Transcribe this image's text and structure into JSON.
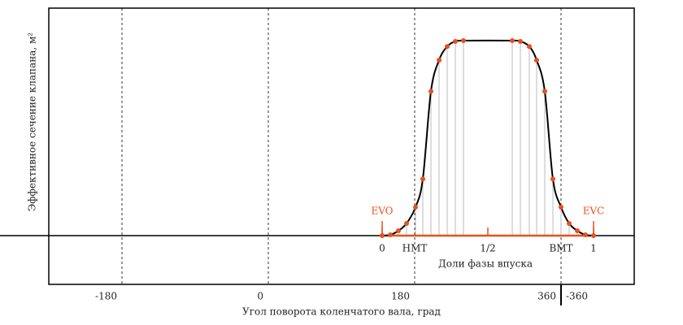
{
  "chart_data": {
    "type": "line",
    "xlabel": "Угол поворота коленчатого вала, град",
    "ylabel": "Эффективное сечение клапана, м²",
    "xlim": [
      -270,
      450
    ],
    "ylim": [
      -0.25,
      1.1667
    ],
    "xticks": [
      -180,
      0,
      180,
      360
    ],
    "xtick_extra": {
      "value": 360,
      "label": "-360"
    },
    "grid": true,
    "x": [
      140,
      150,
      160,
      170,
      181,
      190,
      200,
      210,
      220,
      230,
      240,
      300,
      310,
      321,
      330,
      340,
      350,
      360,
      370,
      380,
      390,
      400
    ],
    "series": [
      {
        "color": "#000000",
        "marker_color": "#e8501e",
        "values": [
          0,
          0.004,
          0.025,
          0.0625,
          0.146,
          0.29,
          0.74,
          0.9,
          0.97,
          0.996,
          1,
          1,
          0.996,
          0.97,
          0.9,
          0.74,
          0.29,
          0.146,
          0.0625,
          0.025,
          0.004,
          0
        ]
      }
    ],
    "x2label": "Доли фазы впуска",
    "x2lim": [
      0,
      1
    ],
    "x2_span": [
      140,
      400
    ],
    "x2ticks": [
      0,
      {
        "value": 0.5,
        "label": "1/2"
      },
      1
    ],
    "x2_color": "#e8501e",
    "annotations": [
      {
        "text": "НМТ",
        "x": 180
      },
      {
        "text": "ВМТ",
        "x": 360
      }
    ],
    "phase_markers": [
      {
        "text": "EVO",
        "phase": 0
      },
      {
        "text": "EVC",
        "phase": 1
      }
    ]
  }
}
